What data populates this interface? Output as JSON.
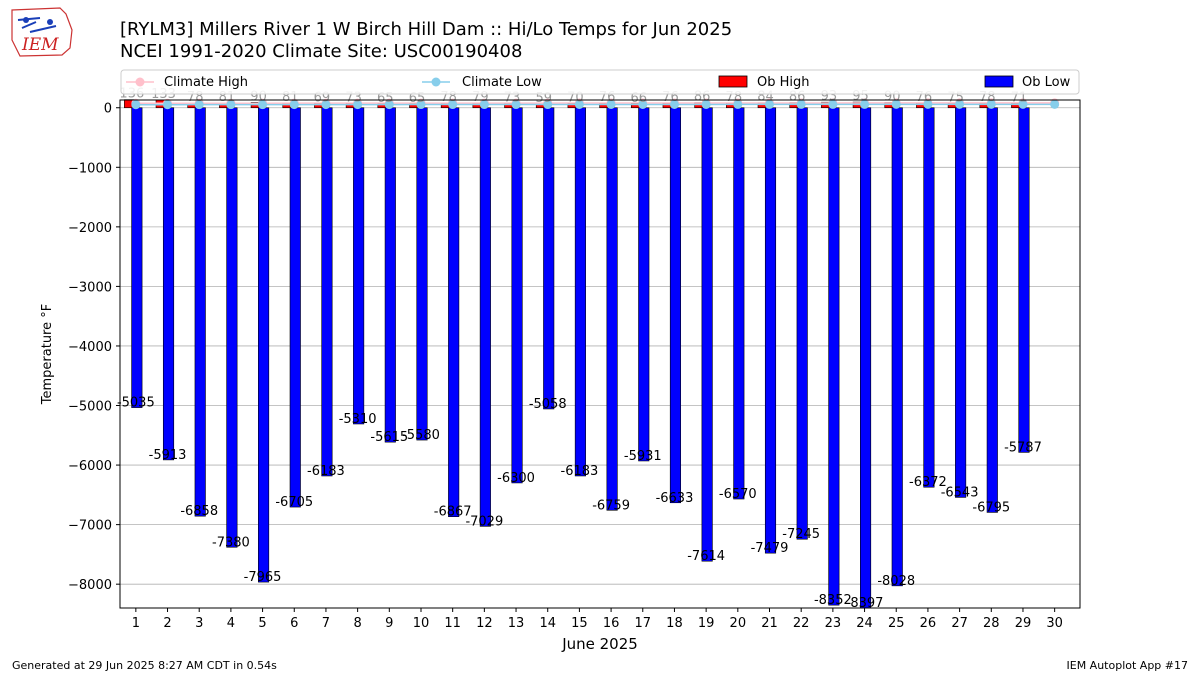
{
  "logo": {
    "text": "IEM"
  },
  "title_line1": "[RYLM3] Millers River 1 W Birch Hill Dam :: Hi/Lo Temps for Jun 2025",
  "title_line2": "NCEI 1991-2020 Climate Site: USC00190408",
  "footer_left": "Generated at 29 Jun 2025 8:27 AM CDT in 0.54s",
  "footer_right": "IEM Autoplot App #17",
  "colors": {
    "ob_high": "#ff0000",
    "ob_low": "#0000ff",
    "climate_high": "#ffc0cb",
    "climate_low": "#87ceeb",
    "grid": "#b0b0b0"
  },
  "chart_data": {
    "type": "bar",
    "xlabel": "June 2025",
    "ylabel": "Temperature °F",
    "ylim": [
      -8400,
      130
    ],
    "yticks": [
      0,
      -1000,
      -2000,
      -3000,
      -4000,
      -5000,
      -6000,
      -7000,
      -8000
    ],
    "grid": true,
    "legend_position": "top",
    "categories": [
      1,
      2,
      3,
      4,
      5,
      6,
      7,
      8,
      9,
      10,
      11,
      12,
      13,
      14,
      15,
      16,
      17,
      18,
      19,
      20,
      21,
      22,
      23,
      24,
      25,
      26,
      27,
      28,
      29,
      30
    ],
    "series": [
      {
        "name": "Climate High",
        "kind": "line",
        "values": [
          75,
          75,
          76,
          76,
          76,
          77,
          77,
          77,
          77,
          78,
          78,
          78,
          78,
          78,
          79,
          79,
          79,
          79,
          80,
          80,
          80,
          80,
          80,
          81,
          81,
          81,
          81,
          81,
          81,
          82
        ]
      },
      {
        "name": "Climate Low",
        "kind": "line",
        "values": [
          51,
          51,
          52,
          52,
          52,
          53,
          53,
          53,
          53,
          54,
          54,
          54,
          54,
          54,
          55,
          55,
          55,
          55,
          55,
          56,
          56,
          56,
          56,
          56,
          57,
          57,
          57,
          57,
          57,
          57
        ]
      },
      {
        "name": "Ob High",
        "kind": "bar",
        "values": [
          136,
          133,
          78,
          81,
          90,
          81,
          69,
          73,
          65,
          65,
          78,
          79,
          73,
          59,
          70,
          76,
          66,
          76,
          86,
          78,
          84,
          86,
          93,
          95,
          90,
          76,
          75,
          78,
          71,
          null
        ]
      },
      {
        "name": "Ob Low",
        "kind": "bar",
        "values": [
          -5035,
          -5913,
          -6858,
          -7380,
          -7965,
          -6705,
          -6183,
          -5310,
          -5615,
          -5580,
          -6867,
          -7029,
          -6300,
          -5058,
          -6183,
          -6759,
          -5931,
          -6633,
          -7614,
          -6570,
          -7479,
          -7245,
          -8352,
          -8397,
          -8028,
          -6372,
          -6543,
          -6795,
          -5787,
          null
        ]
      }
    ],
    "high_labels": [
      "136",
      "133",
      "78",
      "81",
      "90",
      "81",
      "69",
      "73",
      "65",
      "65",
      "78",
      "79",
      "73",
      "59",
      "70",
      "76",
      "66",
      "76",
      "86",
      "78",
      "84",
      "86",
      "93",
      "95",
      "90",
      "76",
      "75",
      "78",
      "71"
    ],
    "low_labels": [
      "-5035",
      "-5913",
      "-6858",
      "-7380",
      "-7965",
      "-6705",
      "-6183",
      "-5310",
      "-5615",
      "-5580",
      "-6867",
      "-7029",
      "-6300",
      "-5058",
      "-6183",
      "-6759",
      "-5931",
      "-6633",
      "-7614",
      "-6570",
      "-7479",
      "-7245",
      "-8352",
      "-8397",
      "-8028",
      "-6372",
      "-6543",
      "-6795",
      "-5787"
    ]
  }
}
